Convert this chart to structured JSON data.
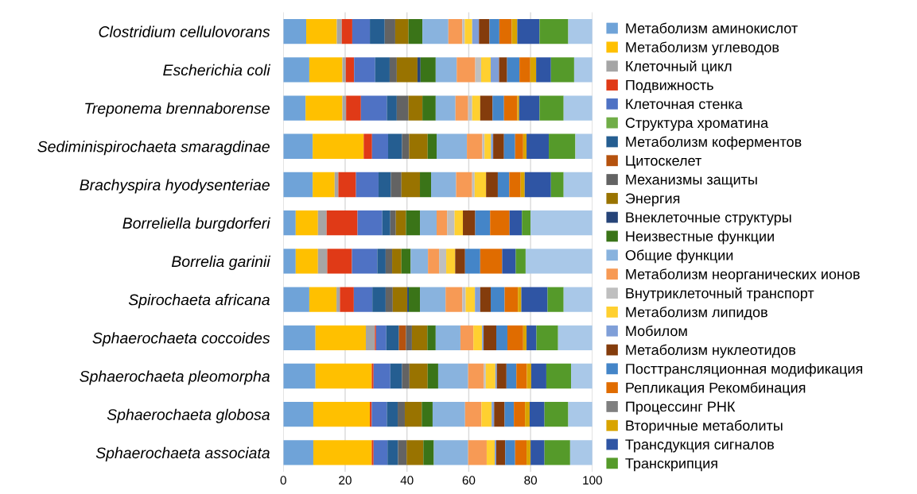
{
  "chart_data": {
    "type": "bar",
    "orientation": "horizontal",
    "stacked": true,
    "categories": [
      "Clostridium cellulovorans",
      "Escherichia coli",
      "Treponema brennaborense",
      "Sediminispirochaeta smaragdinae",
      "Brachyspira hyodysenteriae",
      "Borreliella burgdorferi",
      "Borrelia garinii",
      "Spirochaeta africana",
      "Sphaerochaeta coccoides",
      "Sphaerochaeta pleomorpha",
      "Sphaerochaeta globosa",
      "Sphaerochaeta associata"
    ],
    "xlim": [
      0,
      100
    ],
    "xticks": [
      0,
      20,
      40,
      60,
      80,
      100
    ],
    "grid": "x",
    "legend": "right",
    "series": [
      {
        "name": "Метаболизм аминокислот",
        "color": "#6fa3d8",
        "values": [
          7.4,
          8.4,
          7.2,
          9.5,
          9.5,
          4.0,
          4.0,
          8.4,
          10.4,
          10.4,
          9.7,
          9.7
        ]
      },
      {
        "name": "Метаболизм углеводов",
        "color": "#ffc000",
        "values": [
          9.9,
          10.7,
          11.9,
          16.5,
          7.1,
          7.2,
          7.2,
          8.8,
          16.3,
          18.2,
          18.3,
          18.9
        ]
      },
      {
        "name": "Клеточный цикл",
        "color": "#a5a5a5",
        "values": [
          1.6,
          1.1,
          1.2,
          null,
          1.2,
          2.8,
          3.0,
          1.1,
          2.9,
          null,
          null,
          null
        ]
      },
      {
        "name": "Подвижность",
        "color": "#e03a17",
        "values": [
          3.4,
          2.7,
          4.8,
          2.7,
          5.7,
          10.0,
          8.0,
          4.5,
          0.4,
          0.6,
          0.6,
          0.6
        ]
      },
      {
        "name": "Клеточная стенка",
        "color": "#4f72c4",
        "values": [
          5.7,
          6.8,
          8.4,
          5.2,
          7.3,
          8.0,
          8.2,
          6.0,
          3.3,
          5.4,
          4.9,
          4.5
        ]
      },
      {
        "name": "Структура хроматина",
        "color": "#70ad47",
        "values": [
          null,
          null,
          null,
          null,
          null,
          null,
          null,
          null,
          null,
          null,
          null,
          null
        ]
      },
      {
        "name": "Метаболизм коферментов",
        "color": "#255e91",
        "values": [
          4.8,
          4.7,
          3.2,
          4.5,
          4.0,
          2.6,
          2.7,
          4.3,
          4.1,
          3.8,
          3.5,
          3.4
        ]
      },
      {
        "name": "Цитоскелет",
        "color": "#b5520e",
        "values": [
          null,
          null,
          null,
          null,
          null,
          null,
          null,
          null,
          2.3,
          null,
          null,
          null
        ]
      },
      {
        "name": "Механизмы защиты",
        "color": "#636363",
        "values": [
          3.4,
          2.3,
          3.8,
          2.3,
          3.4,
          1.8,
          2.1,
          2.3,
          1.9,
          2.4,
          2.3,
          2.8
        ]
      },
      {
        "name": "Энергия",
        "color": "#997300",
        "values": [
          4.3,
          6.7,
          4.5,
          6.0,
          6.0,
          3.3,
          3.0,
          4.7,
          5.0,
          5.9,
          5.5,
          5.4
        ]
      },
      {
        "name": "Внеклеточные структуры",
        "color": "#264478",
        "values": [
          null,
          1.0,
          null,
          null,
          null,
          null,
          null,
          0.5,
          null,
          null,
          null,
          null
        ]
      },
      {
        "name": "Неизвестные функции",
        "color": "#3a7418",
        "values": [
          4.5,
          4.9,
          4.3,
          2.9,
          3.6,
          4.5,
          3.0,
          3.6,
          2.7,
          3.4,
          3.5,
          3.4
        ]
      },
      {
        "name": "Общие функции",
        "color": "#89b3de",
        "values": [
          8.4,
          6.8,
          6.4,
          9.8,
          8.1,
          5.4,
          5.6,
          8.3,
          8.0,
          9.7,
          10.5,
          11.1
        ]
      },
      {
        "name": "Метаболизм неорганических ионов",
        "color": "#f79a55",
        "values": [
          4.5,
          6.0,
          4.1,
          5.0,
          5.2,
          3.4,
          3.6,
          5.4,
          4.2,
          5.1,
          5.3,
          6.0
        ]
      },
      {
        "name": "Внутриклеточный транспорт",
        "color": "#bfbfbf",
        "values": [
          0.8,
          1.9,
          1.3,
          0.7,
          0.8,
          2.4,
          2.3,
          1.1,
          null,
          0.6,
          null,
          null
        ]
      },
      {
        "name": "Метаболизм липидов",
        "color": "#ffd030",
        "values": [
          2.4,
          3.1,
          2.6,
          2.1,
          3.7,
          2.7,
          2.9,
          3.0,
          2.8,
          3.1,
          3.3,
          2.6
        ]
      },
      {
        "name": "Мобилом",
        "color": "#7f9fd8",
        "values": [
          2.2,
          2.7,
          null,
          0.7,
          null,
          null,
          null,
          1.7,
          0.5,
          0.5,
          0.8,
          0.5
        ]
      },
      {
        "name": "Метаболизм нуклеотидов",
        "color": "#843c0c",
        "values": [
          3.4,
          2.6,
          4.0,
          3.5,
          3.8,
          4.0,
          3.2,
          3.4,
          4.1,
          3.1,
          3.4,
          2.9
        ]
      },
      {
        "name": "Посттрансляционная модификация",
        "color": "#4485c8",
        "values": [
          3.2,
          4.0,
          3.7,
          3.6,
          3.7,
          4.8,
          4.9,
          4.5,
          3.6,
          3.2,
          3.0,
          3.2
        ]
      },
      {
        "name": "Репликация Рекомбинация",
        "color": "#e06c00",
        "values": [
          4.0,
          3.5,
          4.3,
          2.6,
          3.7,
          6.3,
          7.1,
          4.3,
          5.1,
          3.4,
          3.6,
          3.7
        ]
      },
      {
        "name": "Процессинг РНК",
        "color": "#7f7f7f",
        "values": [
          null,
          null,
          null,
          null,
          null,
          null,
          null,
          null,
          null,
          null,
          null,
          null
        ]
      },
      {
        "name": "Вторичные метаболиты",
        "color": "#d9a400",
        "values": [
          1.8,
          1.9,
          0.6,
          1.1,
          1.3,
          null,
          null,
          1.1,
          1.1,
          1.4,
          1.5,
          1.3
        ]
      },
      {
        "name": "Трансдукция сигналов",
        "color": "#2f55a4",
        "values": [
          7.2,
          4.8,
          6.6,
          7.2,
          8.5,
          4.0,
          4.4,
          8.5,
          3.2,
          4.9,
          4.8,
          4.5
        ]
      },
      {
        "name": "Транскрипция",
        "color": "#559a2a",
        "values": [
          9.3,
          7.5,
          7.8,
          8.6,
          4.1,
          2.8,
          3.2,
          5.2,
          7.0,
          8.0,
          7.7,
          8.3
        ]
      },
      {
        "color": "#a9c8e8",
        "values": [
          7.8,
          5.9,
          9.3,
          5.5,
          9.3,
          20.0,
          21.6,
          9.3,
          11.1,
          6.9,
          7.8,
          7.2
        ]
      }
    ]
  }
}
